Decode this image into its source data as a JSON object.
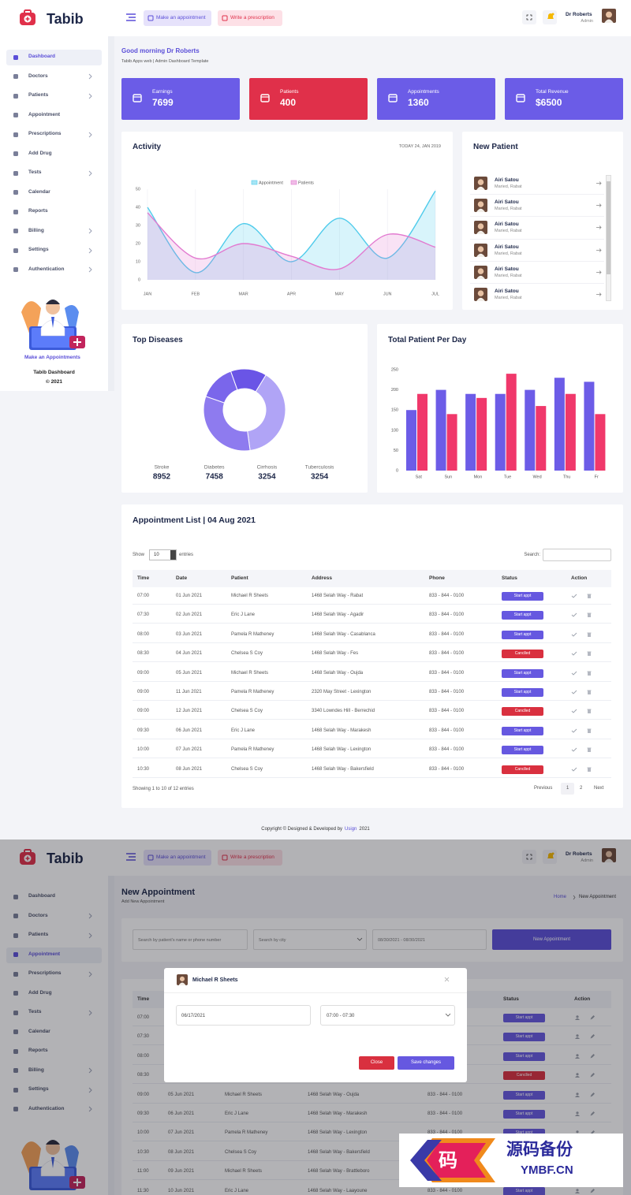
{
  "header": {
    "brand": "Tabib",
    "buttons": [
      "Make an appointment",
      "Write a prescription"
    ],
    "user": {
      "name": "Dr Roberts",
      "role": "Admin"
    }
  },
  "sidebar": {
    "items": [
      {
        "label": "Dashboard",
        "has_submenu": false
      },
      {
        "label": "Doctors",
        "has_submenu": true
      },
      {
        "label": "Patients",
        "has_submenu": true
      },
      {
        "label": "Appointment",
        "has_submenu": false
      },
      {
        "label": "Prescriptions",
        "has_submenu": true
      },
      {
        "label": "Add Drug",
        "has_submenu": false
      },
      {
        "label": "Tests",
        "has_submenu": true
      },
      {
        "label": "Calendar",
        "has_submenu": false
      },
      {
        "label": "Reports",
        "has_submenu": false
      },
      {
        "label": "Billing",
        "has_submenu": true
      },
      {
        "label": "Settings",
        "has_submenu": true
      },
      {
        "label": "Authentication",
        "has_submenu": true
      }
    ],
    "promo": {
      "link": "Make an Appointments",
      "title": "Tabib Dashboard",
      "copyright": "© 2021"
    }
  },
  "dashboard": {
    "greeting": "Good morning Dr Roberts",
    "subtitle": "Tabib Apps web | Admin Dashboard Template",
    "stats": [
      {
        "label": "Earnings",
        "value": 7699,
        "color": "#6b5ce7"
      },
      {
        "label": "Patients",
        "value": 400,
        "color": "#e0304a"
      },
      {
        "label": "Appointments",
        "value": 1360,
        "color": "#6b5ce7"
      },
      {
        "label": "Total Revenue",
        "value": "$6500",
        "color": "#6b5ce7"
      }
    ]
  },
  "activity": {
    "title": "Activity",
    "date": "TODAY 24, JAN 2019",
    "categories": [
      "JAN",
      "FEB",
      "MAR",
      "APR",
      "MAY",
      "JUN",
      "JUL"
    ],
    "ylim": [
      0,
      50
    ],
    "yticks": [
      0,
      10,
      20,
      30,
      40,
      50
    ],
    "series": [
      {
        "name": "Appointment",
        "color": "#4fcbeb",
        "values": [
          40,
          4,
          31,
          10,
          34,
          12,
          49
        ]
      },
      {
        "name": "Patients",
        "color": "#e27ad0",
        "values": [
          37,
          12,
          20,
          13,
          6,
          25,
          18
        ]
      }
    ]
  },
  "new_patient": {
    "title": "New Patient",
    "patients": [
      {
        "name": "Airi Satou",
        "info": "Maried, Rabat"
      },
      {
        "name": "Airi Satou",
        "info": "Maried, Rabat"
      },
      {
        "name": "Airi Satou",
        "info": "Maried, Rabat"
      },
      {
        "name": "Airi Satou",
        "info": "Maried, Rabat"
      },
      {
        "name": "Airi Satou",
        "info": "Maried, Rabat"
      },
      {
        "name": "Airi Satou",
        "info": "Maried, Rabat"
      }
    ]
  },
  "top_diseases": {
    "title": "Top Diseases",
    "categories": [
      "Stroke",
      "Diabetes",
      "Cirrhosis",
      "Tuberculosis"
    ],
    "values": [
      8952,
      7458,
      3254,
      3254
    ],
    "colors": [
      "#b0a4f6",
      "#8e7bef",
      "#7a66eb",
      "#6a55e6"
    ]
  },
  "patients_per_day": {
    "title": "Total Patient Per Day",
    "categories": [
      "Sat",
      "Sun",
      "Mon",
      "Tue",
      "Wed",
      "Thu",
      "Fr"
    ],
    "ylim": [
      0,
      250
    ],
    "yticks": [
      0,
      50,
      100,
      150,
      200,
      250
    ],
    "series": [
      {
        "color": "#6c5ce7",
        "values": [
          150,
          200,
          190,
          190,
          200,
          230,
          220
        ]
      },
      {
        "color": "#f0386b",
        "values": [
          190,
          140,
          180,
          240,
          160,
          190,
          140
        ]
      }
    ]
  },
  "appointments": {
    "title": "Appointment List | 04 Aug 2021",
    "show": "Show",
    "page_size": 10,
    "entries": "entries",
    "search": "Search:",
    "columns": [
      "Time",
      "Date",
      "Patient",
      "Address",
      "Phone",
      "Status",
      "Action"
    ],
    "status_colors": {
      "Start appt": "#6658e0",
      "Canclled": "#d9303f"
    },
    "rows": [
      {
        "time": "07:00",
        "date": "01 Jun 2021",
        "patient": "Michael R Sheets",
        "address": "1468 Selah Way - Rabat",
        "phone": "833 - 844 - 0100",
        "status": "Start appt"
      },
      {
        "time": "07:30",
        "date": "02 Jun 2021",
        "patient": "Eric J Lane",
        "address": "1468 Selah Way - Agadir",
        "phone": "833 - 844 - 0100",
        "status": "Start appt"
      },
      {
        "time": "08:00",
        "date": "03 Jun 2021",
        "patient": "Pamela R Matheney",
        "address": "1468 Selah Way - Casablanca",
        "phone": "833 - 844 - 0100",
        "status": "Start appt"
      },
      {
        "time": "08:30",
        "date": "04 Jun 2021",
        "patient": "Chelsea S Coy",
        "address": "1468 Selah Way - Fes",
        "phone": "833 - 844 - 0100",
        "status": "Canclled"
      },
      {
        "time": "09:00",
        "date": "05 Jun 2021",
        "patient": "Michael R Sheets",
        "address": "1468 Selah Way - Oujda",
        "phone": "833 - 844 - 0100",
        "status": "Start appt"
      },
      {
        "time": "09:00",
        "date": "11 Jun 2021",
        "patient": "Pamela R Matheney",
        "address": "2320 May Street - Lexington",
        "phone": "833 - 844 - 0100",
        "status": "Start appt"
      },
      {
        "time": "09:00",
        "date": "12 Jun 2021",
        "patient": "Chelsea S Coy",
        "address": "3340 Lowndes Hill - Berrechid",
        "phone": "833 - 844 - 0100",
        "status": "Canclled"
      },
      {
        "time": "09:30",
        "date": "06 Jun 2021",
        "patient": "Eric J Lane",
        "address": "1468 Selah Way - Marakesh",
        "phone": "833 - 844 - 0100",
        "status": "Start appt"
      },
      {
        "time": "10:00",
        "date": "07 Jun 2021",
        "patient": "Pamela R Matheney",
        "address": "1468 Selah Way - Lexington",
        "phone": "833 - 844 - 0100",
        "status": "Start appt"
      },
      {
        "time": "10:30",
        "date": "08 Jun 2021",
        "patient": "Chelsea S Coy",
        "address": "1468 Selah Way - Bakersfield",
        "phone": "833 - 844 - 0100",
        "status": "Canclled"
      }
    ],
    "summary": "Showing 1 to 10 of 12 entries",
    "pagination": [
      "Previous",
      "1",
      "2",
      "Next"
    ]
  },
  "footer": {
    "before": "Copyright © Designed & Developed by",
    "link": "Usign",
    "after": "2021"
  },
  "new_appointment": {
    "title": "New Appointment",
    "subtitle": "Add New Appointment",
    "breadcrumb": [
      "Home",
      "New Appointment"
    ],
    "filters": {
      "search": "Search by patient's name or phone number",
      "city": "Search by city",
      "dates": "08/30/2021 - 08/30/2021",
      "button": "New Appointment"
    },
    "rows": [
      {
        "time": "07:00",
        "status": "Start appt"
      },
      {
        "time": "07:30",
        "status": "Start appt"
      },
      {
        "time": "08:00",
        "status": "Start appt"
      },
      {
        "time": "08:30",
        "status": "Canclled"
      },
      {
        "time": "09:00",
        "date": "05 Jun 2021",
        "patient": "Michael R Sheets",
        "address": "1468 Selah Way - Oujda",
        "phone": "833 - 844 - 0100",
        "status": "Start appt"
      },
      {
        "time": "09:30",
        "date": "06 Jun 2021",
        "patient": "Eric J Lane",
        "address": "1468 Selah Way - Marakesh",
        "phone": "833 - 844 - 0100",
        "status": "Start appt"
      },
      {
        "time": "10:00",
        "date": "07 Jun 2021",
        "patient": "Pamela R Matheney",
        "address": "1468 Selah Way - Lexington",
        "phone": "833 - 844 - 0100",
        "status": "Start appt"
      },
      {
        "time": "10:30",
        "date": "08 Jun 2021",
        "patient": "Chelsea S Coy",
        "address": "1468 Selah Way - Bakersfield"
      },
      {
        "time": "11:00",
        "date": "09 Jun 2021",
        "patient": "Michael R Sheets",
        "address": "1468 Selah Way - Brattleboro"
      },
      {
        "time": "11:30",
        "date": "10 Jun 2021",
        "patient": "Eric J Lane",
        "address": "1468 Selah Way - Laayoune",
        "phone": "833 - 844 - 0100",
        "status": "Start appt"
      }
    ]
  },
  "modal": {
    "patient": "Michael R Sheets",
    "date": "06/17/2021",
    "time": "07:00 - 07:30",
    "buttons": [
      "Close",
      "Save changes"
    ]
  },
  "watermark": {
    "logo": "码",
    "title": "源码备份",
    "url": "YMBF.CN"
  }
}
